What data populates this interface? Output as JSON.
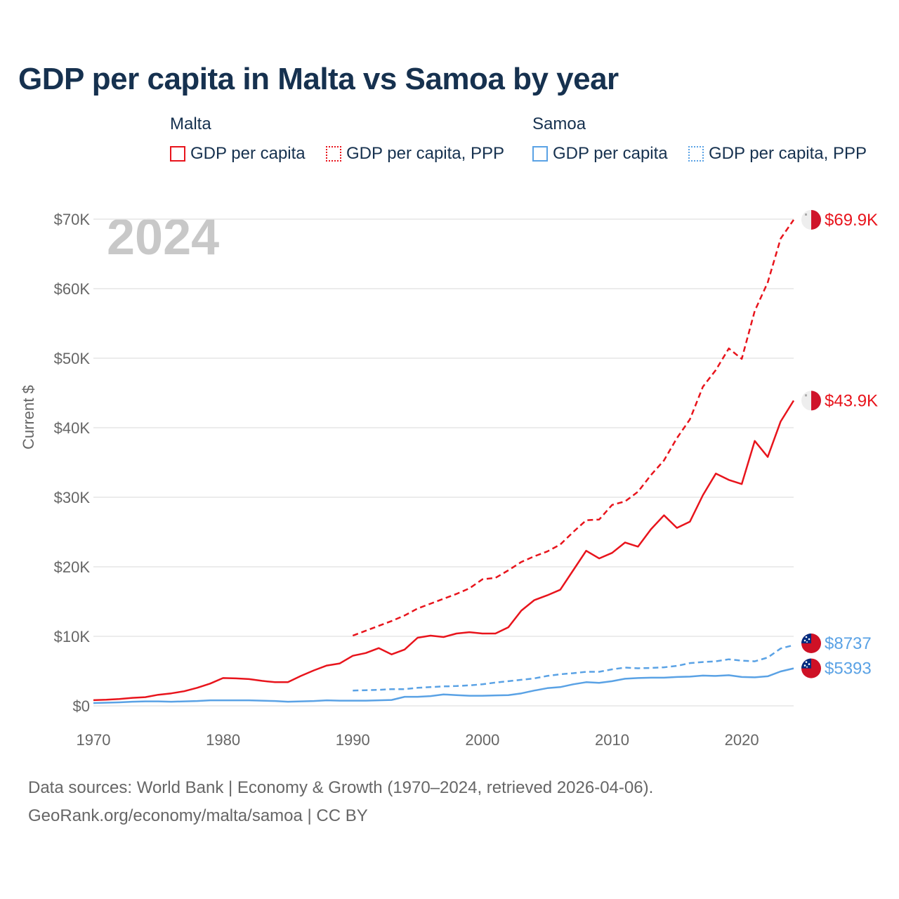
{
  "title": "GDP per capita in Malta vs Samoa by year",
  "legend": {
    "groups": [
      {
        "name": "Malta",
        "items": [
          "GDP per capita",
          "GDP per capita, PPP"
        ],
        "color": "#e8141c"
      },
      {
        "name": "Samoa",
        "items": [
          "GDP per capita",
          "GDP per capita, PPP"
        ],
        "color": "#5aa2e5"
      }
    ]
  },
  "footer": {
    "line1": "Data sources: World Bank | Economy & Growth (1970–2024, retrieved 2026-04-06).",
    "line2": "GeoRank.org/economy/malta/samoa | CC BY"
  },
  "chart_data": {
    "type": "line",
    "title": "GDP per capita in Malta vs Samoa by year",
    "year_watermark": "2024",
    "xlabel": "",
    "ylabel": "Current $",
    "xlim": [
      1970,
      2024
    ],
    "ylim": [
      0,
      70000
    ],
    "x_ticks": [
      1970,
      1980,
      1990,
      2000,
      2010,
      2020
    ],
    "y_ticks": [
      {
        "value": 0,
        "label": "$0"
      },
      {
        "value": 10000,
        "label": "$10K"
      },
      {
        "value": 20000,
        "label": "$20K"
      },
      {
        "value": 30000,
        "label": "$30K"
      },
      {
        "value": 40000,
        "label": "$40K"
      },
      {
        "value": 50000,
        "label": "$50K"
      },
      {
        "value": 60000,
        "label": "$60K"
      },
      {
        "value": 70000,
        "label": "$70K"
      }
    ],
    "grid": true,
    "series": [
      {
        "name": "Malta GDP per capita, PPP",
        "country": "Malta",
        "color": "#e8141c",
        "dash": true,
        "x": [
          1990,
          1991,
          1992,
          1993,
          1994,
          1995,
          1996,
          1997,
          1998,
          1999,
          2000,
          2001,
          2002,
          2003,
          2004,
          2005,
          2006,
          2007,
          2008,
          2009,
          2010,
          2011,
          2012,
          2013,
          2014,
          2015,
          2016,
          2017,
          2018,
          2019,
          2020,
          2021,
          2022,
          2023,
          2024
        ],
        "values": [
          10100,
          10800,
          11500,
          12200,
          13000,
          14000,
          14700,
          15400,
          16100,
          16900,
          18200,
          18400,
          19500,
          20700,
          21500,
          22200,
          23200,
          25000,
          26700,
          26800,
          28900,
          29400,
          30800,
          33200,
          35300,
          38500,
          41200,
          45900,
          48300,
          51400,
          49900,
          56800,
          60900,
          67200,
          69900
        ],
        "end_label": "$69.9K"
      },
      {
        "name": "Malta GDP per capita",
        "country": "Malta",
        "color": "#e8141c",
        "dash": false,
        "x": [
          1970,
          1971,
          1972,
          1973,
          1974,
          1975,
          1976,
          1977,
          1978,
          1979,
          1980,
          1981,
          1982,
          1983,
          1984,
          1985,
          1986,
          1987,
          1988,
          1989,
          1990,
          1991,
          1992,
          1993,
          1994,
          1995,
          1996,
          1997,
          1998,
          1999,
          2000,
          2001,
          2002,
          2003,
          2004,
          2005,
          2006,
          2007,
          2008,
          2009,
          2010,
          2011,
          2012,
          2013,
          2014,
          2015,
          2016,
          2017,
          2018,
          2019,
          2020,
          2021,
          2022,
          2023,
          2024
        ],
        "values": [
          820,
          880,
          990,
          1150,
          1250,
          1600,
          1800,
          2100,
          2600,
          3200,
          4000,
          3950,
          3850,
          3600,
          3400,
          3400,
          4300,
          5100,
          5800,
          6100,
          7200,
          7600,
          8300,
          7400,
          8100,
          9800,
          10100,
          9900,
          10400,
          10600,
          10400,
          10400,
          11300,
          13700,
          15200,
          15900,
          16700,
          19500,
          22300,
          21200,
          22000,
          23500,
          22900,
          25400,
          27400,
          25600,
          26500,
          30300,
          33400,
          32500,
          31900,
          38100,
          35800,
          40900,
          43900
        ],
        "end_label": "$43.9K"
      },
      {
        "name": "Samoa GDP per capita, PPP",
        "country": "Samoa",
        "color": "#5aa2e5",
        "dash": true,
        "x": [
          1990,
          1991,
          1992,
          1993,
          1994,
          1995,
          1996,
          1997,
          1998,
          1999,
          2000,
          2001,
          2002,
          2003,
          2004,
          2005,
          2006,
          2007,
          2008,
          2009,
          2010,
          2011,
          2012,
          2013,
          2014,
          2015,
          2016,
          2017,
          2018,
          2019,
          2020,
          2021,
          2022,
          2023,
          2024
        ],
        "values": [
          2200,
          2250,
          2300,
          2400,
          2400,
          2600,
          2700,
          2800,
          2850,
          2950,
          3100,
          3350,
          3550,
          3750,
          3950,
          4300,
          4550,
          4700,
          4900,
          4900,
          5250,
          5500,
          5400,
          5450,
          5550,
          5750,
          6150,
          6300,
          6400,
          6700,
          6500,
          6400,
          6950,
          8250,
          8737
        ],
        "end_label": "$8737"
      },
      {
        "name": "Samoa GDP per capita",
        "country": "Samoa",
        "color": "#5aa2e5",
        "dash": false,
        "x": [
          1970,
          1971,
          1972,
          1973,
          1974,
          1975,
          1976,
          1977,
          1978,
          1979,
          1980,
          1981,
          1982,
          1983,
          1984,
          1985,
          1986,
          1987,
          1988,
          1989,
          1990,
          1991,
          1992,
          1993,
          1994,
          1995,
          1996,
          1997,
          1998,
          1999,
          2000,
          2001,
          2002,
          2003,
          2004,
          2005,
          2006,
          2007,
          2008,
          2009,
          2010,
          2011,
          2012,
          2013,
          2014,
          2015,
          2016,
          2017,
          2018,
          2019,
          2020,
          2021,
          2022,
          2023,
          2024
        ],
        "values": [
          400,
          450,
          500,
          600,
          650,
          650,
          600,
          650,
          700,
          800,
          800,
          800,
          800,
          750,
          700,
          600,
          650,
          700,
          800,
          750,
          750,
          750,
          800,
          850,
          1300,
          1300,
          1400,
          1650,
          1550,
          1450,
          1450,
          1500,
          1550,
          1800,
          2200,
          2550,
          2700,
          3100,
          3400,
          3300,
          3550,
          3900,
          4000,
          4050,
          4050,
          4150,
          4200,
          4350,
          4300,
          4400,
          4150,
          4100,
          4250,
          4950,
          5393
        ],
        "end_label": "$5393"
      }
    ]
  }
}
